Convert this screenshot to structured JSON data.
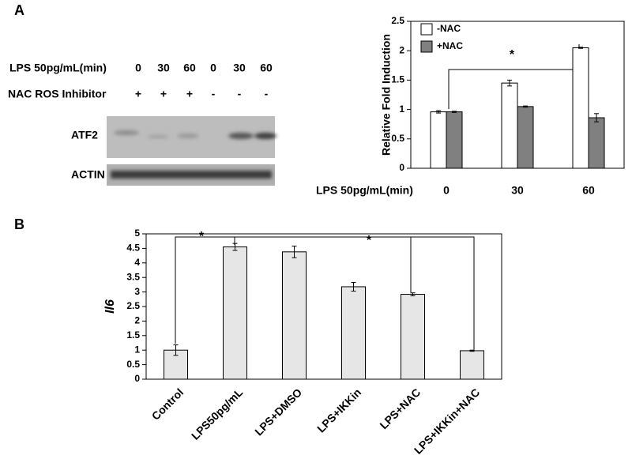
{
  "panel_labels": [
    "A",
    "B"
  ],
  "blot": {
    "rows": [
      {
        "label": "LPS 50pg/mL(min)",
        "values": [
          "0",
          "30",
          "60",
          "0",
          "30",
          "60"
        ]
      },
      {
        "label": "NAC ROS Inhibitor",
        "values": [
          "+",
          "+",
          "+",
          "-",
          "-",
          "-"
        ]
      }
    ],
    "bands": [
      "ATF2",
      "ACTIN"
    ]
  },
  "chart_data": [
    {
      "type": "bar",
      "x_label": "LPS 50pg/mL(min)",
      "y_label": "Relative Fold Induction",
      "categories": [
        "0",
        "30",
        "60"
      ],
      "series": [
        {
          "name": "-NAC",
          "color": "#ffffff",
          "values": [
            0.96,
            1.45,
            2.05
          ],
          "errors": [
            0.02,
            0.05,
            0.01
          ]
        },
        {
          "name": "+NAC",
          "color": "#808080",
          "values": [
            0.96,
            1.05,
            0.86
          ],
          "errors": [
            0.01,
            0.01,
            0.07
          ]
        }
      ],
      "ylim": [
        0,
        2.5
      ],
      "yticks": [
        0,
        0.5,
        1,
        1.5,
        2,
        2.5
      ],
      "legend": "upper left",
      "annotations": [
        "*"
      ]
    },
    {
      "type": "bar",
      "y_label": "Il6",
      "categories": [
        "Control",
        "LPS50pg/mL",
        "LPS+DMSO",
        "LPS+IKKin",
        "LPS+NAC",
        "LPS+IKKin+NAC"
      ],
      "series": [
        {
          "color": "#e6e6e6",
          "values": [
            1.0,
            4.55,
            4.38,
            3.18,
            2.92,
            0.98
          ],
          "errors": [
            0.18,
            0.12,
            0.2,
            0.15,
            0.05,
            0.02
          ]
        }
      ],
      "ylim": [
        0,
        5
      ],
      "yticks": [
        0,
        0.5,
        1,
        1.5,
        2,
        2.5,
        3,
        3.5,
        4,
        4.5,
        5
      ],
      "annotations": [
        "*",
        "*"
      ]
    }
  ]
}
